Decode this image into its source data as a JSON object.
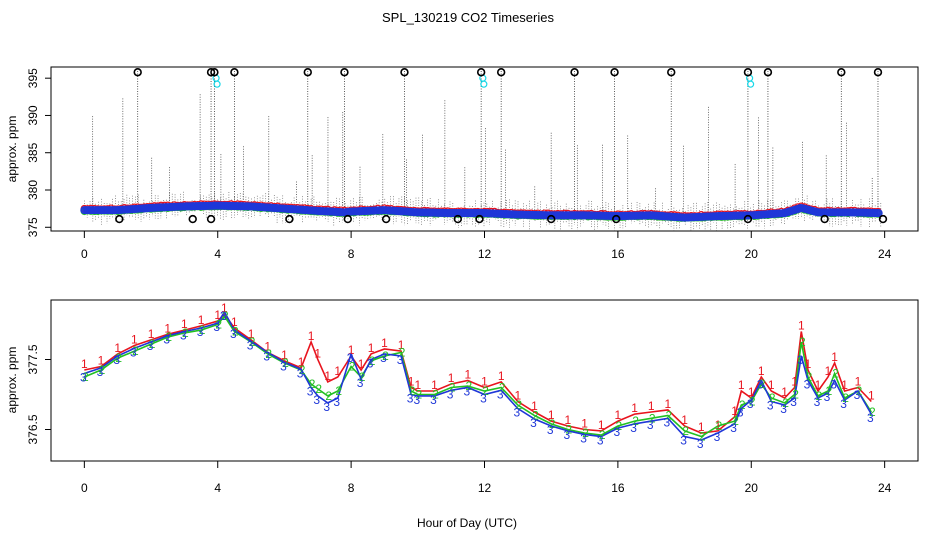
{
  "title": "SPL_130219  CO2 Timeseries",
  "xlabel": "Hour of Day (UTC)",
  "colors": {
    "black": "#000000",
    "red": "#e8141e",
    "green": "#22c022",
    "blue": "#1f37d8",
    "cyan": "#18d8e8"
  },
  "chart_data": [
    {
      "type": "scatter",
      "name": "top-panel",
      "ylabel": "approx. ppm",
      "xlim": [
        -1,
        25
      ],
      "ylim": [
        374.5,
        396.5
      ],
      "xticks": [
        0,
        4,
        8,
        12,
        16,
        20,
        24
      ],
      "yticks": [
        375,
        380,
        385,
        390,
        395
      ],
      "mean_curve": {
        "x": [
          0,
          1,
          2,
          3,
          4,
          5,
          6,
          7,
          7.8,
          8,
          9,
          10,
          11,
          12,
          13,
          14,
          15,
          16,
          17,
          18,
          19,
          20,
          21,
          21.5,
          22,
          23,
          23.8
        ],
        "y": [
          377.3,
          377.3,
          377.6,
          377.8,
          377.9,
          377.8,
          377.5,
          377.2,
          377.0,
          377.1,
          377.3,
          377.0,
          376.9,
          376.9,
          376.7,
          376.6,
          376.6,
          376.5,
          376.6,
          376.3,
          376.5,
          376.6,
          376.9,
          377.6,
          377.0,
          377.0,
          376.9
        ]
      },
      "outliers_high": [
        1.6,
        3.8,
        3.9,
        4.5,
        6.7,
        7.8,
        9.6,
        11.9,
        12.5,
        14.7,
        15.9,
        17.6,
        19.9,
        20.5,
        22.7,
        23.8
      ],
      "outliers_low": [
        1.05,
        3.25,
        3.8,
        6.15,
        7.9,
        9.05,
        11.2,
        11.85,
        14.0,
        15.95,
        19.9,
        22.2,
        23.95
      ],
      "cyan_spikes": [
        {
          "x": 3.95,
          "y": 395
        },
        {
          "x": 11.95,
          "y": 395
        },
        {
          "x": 19.95,
          "y": 395
        }
      ]
    },
    {
      "type": "line",
      "name": "bottom-panel",
      "ylabel": "approx. ppm",
      "xlim": [
        -1,
        25
      ],
      "ylim": [
        376.05,
        378.35
      ],
      "xticks": [
        0,
        4,
        8,
        12,
        16,
        20,
        24
      ],
      "yticks": [
        376.5,
        377.5
      ],
      "ytick_labels": [
        "376.5",
        "377.5"
      ],
      "series": [
        {
          "name": "1",
          "label": "1",
          "color": "red",
          "x": [
            0,
            0.5,
            1,
            1.5,
            2,
            2.5,
            3,
            3.5,
            4,
            4.2,
            4.5,
            5,
            5.5,
            6,
            6.5,
            6.8,
            7,
            7.3,
            7.6,
            8,
            8.3,
            8.6,
            9,
            9.5,
            9.8,
            10,
            10.5,
            11,
            11.5,
            12,
            12.5,
            13,
            13.5,
            14,
            14.5,
            15,
            15.5,
            16,
            16.5,
            17,
            17.5,
            18,
            18.5,
            19,
            19.5,
            19.7,
            20,
            20.3,
            20.6,
            21,
            21.3,
            21.5,
            21.7,
            22,
            22.3,
            22.5,
            22.8,
            23.2,
            23.6
          ],
          "y": [
            377.35,
            377.4,
            377.58,
            377.7,
            377.78,
            377.86,
            377.92,
            377.98,
            378.05,
            378.15,
            377.95,
            377.78,
            377.6,
            377.48,
            377.38,
            377.75,
            377.5,
            377.18,
            377.25,
            377.55,
            377.35,
            377.58,
            377.65,
            377.62,
            377.1,
            377.05,
            377.05,
            377.15,
            377.2,
            377.1,
            377.18,
            376.9,
            376.75,
            376.62,
            376.55,
            376.5,
            376.48,
            376.62,
            376.72,
            376.75,
            376.78,
            376.55,
            376.45,
            376.48,
            376.68,
            377.05,
            376.95,
            377.25,
            377.05,
            376.95,
            377.1,
            377.9,
            377.35,
            377.05,
            377.25,
            377.45,
            377.05,
            377.1,
            376.9
          ]
        },
        {
          "name": "2",
          "label": "2",
          "color": "green",
          "x": [
            0,
            0.5,
            1,
            1.5,
            2,
            2.5,
            3,
            3.5,
            4,
            4.2,
            4.5,
            5,
            5.5,
            6,
            6.5,
            6.8,
            7,
            7.3,
            7.6,
            8,
            8.3,
            8.6,
            9,
            9.5,
            9.8,
            10,
            10.5,
            11,
            11.5,
            12,
            12.5,
            13,
            13.5,
            14,
            14.5,
            15,
            15.5,
            16,
            16.5,
            17,
            17.5,
            18,
            18.5,
            19,
            19.5,
            19.7,
            20,
            20.3,
            20.6,
            21,
            21.3,
            21.5,
            21.7,
            22,
            22.3,
            22.5,
            22.8,
            23.2,
            23.6
          ],
          "y": [
            377.25,
            377.35,
            377.52,
            377.62,
            377.72,
            377.82,
            377.88,
            377.92,
            378.0,
            378.12,
            377.9,
            377.75,
            377.58,
            377.45,
            377.35,
            377.15,
            377.08,
            376.98,
            377.05,
            377.4,
            377.25,
            377.48,
            377.55,
            377.6,
            377.05,
            377.0,
            377.0,
            377.1,
            377.12,
            377.05,
            377.1,
            376.85,
            376.7,
            376.58,
            376.5,
            376.45,
            376.42,
            376.55,
            376.62,
            376.66,
            376.7,
            376.48,
            376.4,
            376.55,
            376.62,
            376.85,
            376.9,
            377.15,
            376.95,
            376.88,
            377.0,
            377.75,
            377.25,
            376.98,
            377.05,
            377.3,
            376.95,
            377.05,
            376.75
          ]
        },
        {
          "name": "3",
          "label": "3",
          "color": "blue",
          "x": [
            0,
            0.5,
            1,
            1.5,
            2,
            2.5,
            3,
            3.5,
            4,
            4.2,
            4.5,
            5,
            5.5,
            6,
            6.5,
            6.8,
            7,
            7.3,
            7.6,
            8,
            8.3,
            8.6,
            9,
            9.5,
            9.8,
            10,
            10.5,
            11,
            11.5,
            12,
            12.5,
            13,
            13.5,
            14,
            14.5,
            15,
            15.5,
            16,
            16.5,
            17,
            17.5,
            18,
            18.5,
            19,
            19.5,
            19.7,
            20,
            20.3,
            20.6,
            21,
            21.3,
            21.5,
            21.7,
            22,
            22.3,
            22.5,
            22.8,
            23.2,
            23.6
          ],
          "y": [
            377.3,
            377.38,
            377.55,
            377.66,
            377.75,
            377.84,
            377.9,
            377.95,
            378.02,
            378.18,
            377.92,
            377.76,
            377.6,
            377.46,
            377.36,
            377.1,
            376.98,
            376.88,
            376.95,
            377.58,
            377.22,
            377.5,
            377.58,
            377.55,
            377.0,
            376.98,
            376.98,
            377.06,
            377.1,
            377.0,
            377.06,
            376.8,
            376.65,
            376.55,
            376.48,
            376.43,
            376.4,
            376.52,
            376.58,
            376.62,
            376.66,
            376.4,
            376.35,
            376.45,
            376.58,
            376.8,
            376.92,
            377.2,
            376.9,
            376.85,
            376.95,
            377.55,
            377.2,
            376.95,
            377.02,
            377.2,
            376.92,
            377.05,
            376.72
          ]
        }
      ]
    }
  ]
}
